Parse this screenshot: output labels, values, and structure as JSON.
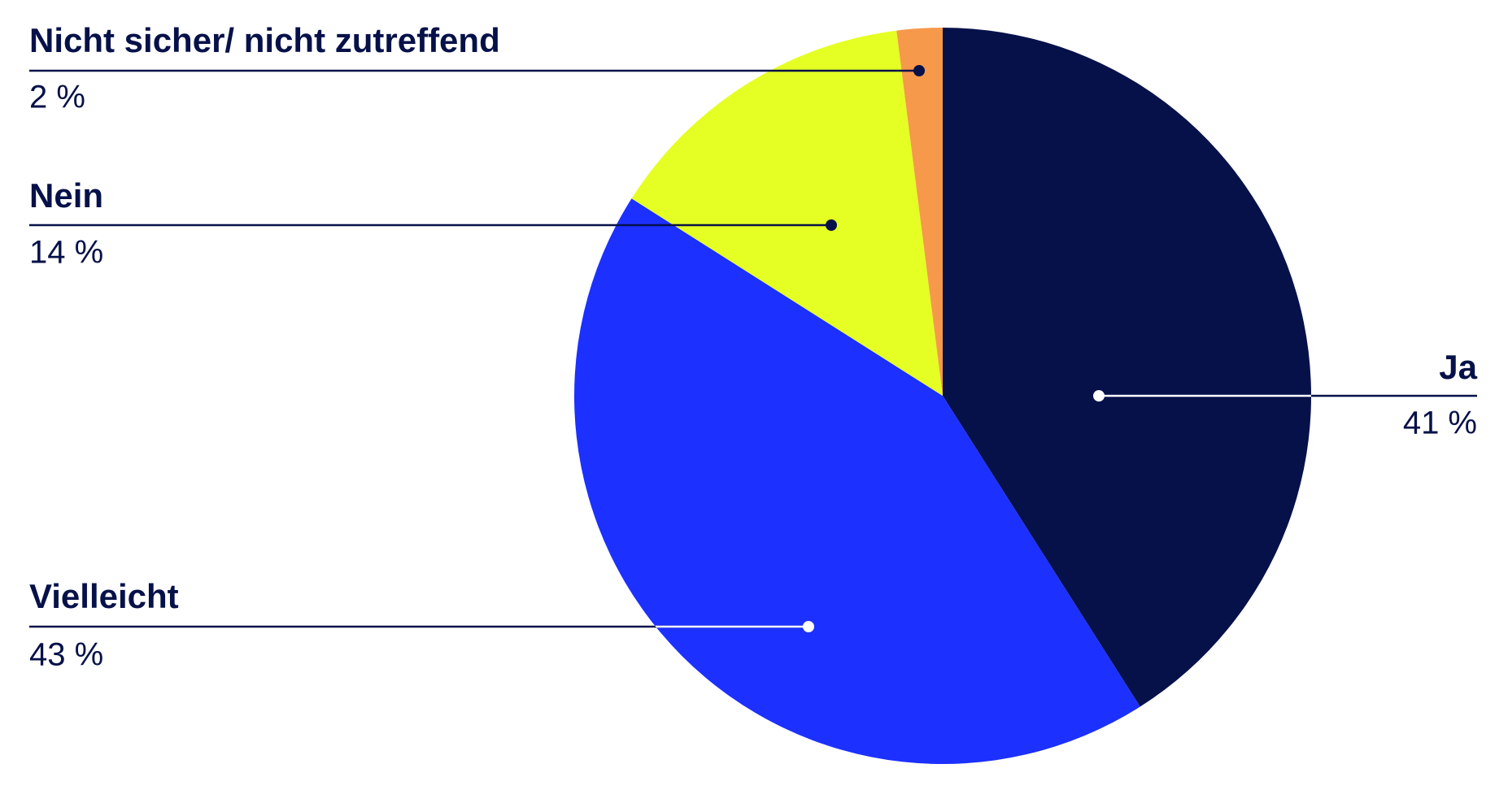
{
  "chart_data": {
    "type": "pie",
    "categories": [
      "Ja",
      "Vielleicht",
      "Nein",
      "Nicht sicher/ nicht zutreffend"
    ],
    "values": [
      41,
      43,
      14,
      2
    ],
    "value_labels": [
      "41 %",
      "43 %",
      "14 %",
      "2 %"
    ],
    "colors": [
      "#061149",
      "#1c30ff",
      "#e5ff24",
      "#f7994a"
    ]
  }
}
